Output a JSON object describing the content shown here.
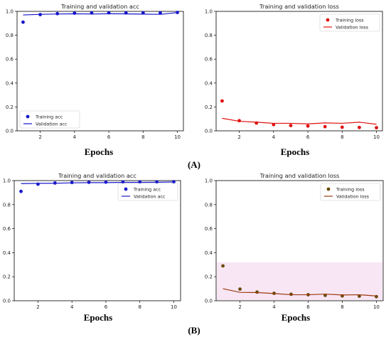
{
  "panel_labels": [
    "(A)",
    "(B)"
  ],
  "xlabel": "Epochs",
  "colors": {
    "A_train_acc": "#1515cc",
    "A_val_acc": "#1515cc",
    "A_train_loss": "#e01010",
    "A_val_loss": "#e01010",
    "B_train_acc": "#1a1acc",
    "B_val_acc": "#1a1acc",
    "B_train_loss": "#6b4a0a",
    "B_val_loss": "#9a3a10",
    "B_loss_band": "#f8e6f4"
  },
  "chart_data": [
    {
      "id": "A_acc",
      "type": "line",
      "title": "Training and validation acc",
      "xlabel": "Epochs",
      "ylabel": "",
      "xlim": [
        0.65,
        10.35
      ],
      "ylim": [
        0,
        1.0
      ],
      "xticks": [
        2,
        4,
        6,
        8,
        10
      ],
      "yticks": [
        0.0,
        0.2,
        0.4,
        0.6,
        0.8,
        1.0
      ],
      "yticklabels": [
        "0.0",
        "0.2",
        "0.4",
        "0.6",
        "0.8",
        "1.0"
      ],
      "legend_position": "lower-left",
      "series": [
        {
          "name": "Training acc",
          "style": "points",
          "x": [
            1,
            2,
            3,
            4,
            5,
            6,
            7,
            8,
            9,
            10
          ],
          "values": [
            0.91,
            0.973,
            0.981,
            0.985,
            0.987,
            0.988,
            0.987,
            0.988,
            0.988,
            0.991
          ]
        },
        {
          "name": "Validation acc",
          "style": "line",
          "x": [
            1,
            2,
            3,
            4,
            5,
            6,
            7,
            8,
            9,
            10
          ],
          "values": [
            0.97,
            0.975,
            0.978,
            0.98,
            0.978,
            0.98,
            0.979,
            0.977,
            0.975,
            0.99
          ]
        }
      ]
    },
    {
      "id": "A_loss",
      "type": "line",
      "title": "Training and validation loss",
      "xlabel": "Epochs",
      "ylabel": "",
      "xlim": [
        0.65,
        10.35
      ],
      "ylim": [
        0,
        1.0
      ],
      "xticks": [
        2,
        4,
        6,
        8,
        10
      ],
      "yticks": [
        0.0,
        0.2,
        0.4,
        0.6,
        0.8,
        1.0
      ],
      "yticklabels": [
        "0.0",
        "0.2",
        "0.4",
        "0.6",
        "0.8",
        "1.0"
      ],
      "legend_position": "top-right",
      "series": [
        {
          "name": "Training loss",
          "style": "points",
          "x": [
            1,
            2,
            3,
            4,
            5,
            6,
            7,
            8,
            9,
            10
          ],
          "values": [
            0.25,
            0.085,
            0.065,
            0.052,
            0.044,
            0.04,
            0.035,
            0.03,
            0.028,
            0.026
          ]
        },
        {
          "name": "Validation loss",
          "style": "line",
          "x": [
            1,
            2,
            3,
            4,
            5,
            6,
            7,
            8,
            9,
            10
          ],
          "values": [
            0.105,
            0.08,
            0.072,
            0.063,
            0.063,
            0.058,
            0.066,
            0.063,
            0.072,
            0.055
          ]
        }
      ]
    },
    {
      "id": "B_acc",
      "type": "line",
      "title": "Training and validation acc",
      "xlabel": "Epochs",
      "ylabel": "",
      "xlim": [
        0.6,
        10.4
      ],
      "ylim": [
        0,
        1.0
      ],
      "xticks": [
        2,
        4,
        6,
        8,
        10
      ],
      "yticks": [
        0.0,
        0.2,
        0.4,
        0.6,
        0.8,
        1.0
      ],
      "yticklabels": [
        "0.0",
        "0.2",
        "0.4",
        "0.6",
        "0.8",
        "1.0"
      ],
      "legend_position": "top-right",
      "series": [
        {
          "name": "Training acc",
          "style": "points",
          "x": [
            1,
            2,
            3,
            4,
            5,
            6,
            7,
            8,
            9,
            10
          ],
          "values": [
            0.91,
            0.97,
            0.98,
            0.984,
            0.986,
            0.987,
            0.988,
            0.989,
            0.989,
            0.99
          ]
        },
        {
          "name": "Validation acc",
          "style": "line",
          "x": [
            1,
            2,
            3,
            4,
            5,
            6,
            7,
            8,
            9,
            10
          ],
          "values": [
            0.975,
            0.977,
            0.978,
            0.981,
            0.983,
            0.983,
            0.985,
            0.985,
            0.986,
            0.989
          ]
        }
      ]
    },
    {
      "id": "B_loss",
      "type": "line",
      "title": "Training and validation loss",
      "xlabel": "Epochs",
      "ylabel": "",
      "xlim": [
        0.6,
        10.4
      ],
      "ylim": [
        0,
        1.0
      ],
      "xticks": [
        2,
        4,
        6,
        8,
        10
      ],
      "yticks": [
        0.0,
        0.2,
        0.4,
        0.6,
        0.8,
        1.0
      ],
      "yticklabels": [
        "0.0",
        "0.2",
        "0.4",
        "0.6",
        "0.8",
        "1.0"
      ],
      "legend_position": "top-right",
      "series": [
        {
          "name": "Training loss",
          "style": "points",
          "x": [
            1,
            2,
            3,
            4,
            5,
            6,
            7,
            8,
            9,
            10
          ],
          "values": [
            0.29,
            0.097,
            0.072,
            0.062,
            0.054,
            0.05,
            0.045,
            0.04,
            0.038,
            0.034
          ]
        },
        {
          "name": "Validation loss",
          "style": "line",
          "x": [
            1,
            2,
            3,
            4,
            5,
            6,
            7,
            8,
            9,
            10
          ],
          "values": [
            0.1,
            0.07,
            0.068,
            0.06,
            0.05,
            0.05,
            0.055,
            0.048,
            0.05,
            0.04
          ]
        }
      ]
    }
  ]
}
